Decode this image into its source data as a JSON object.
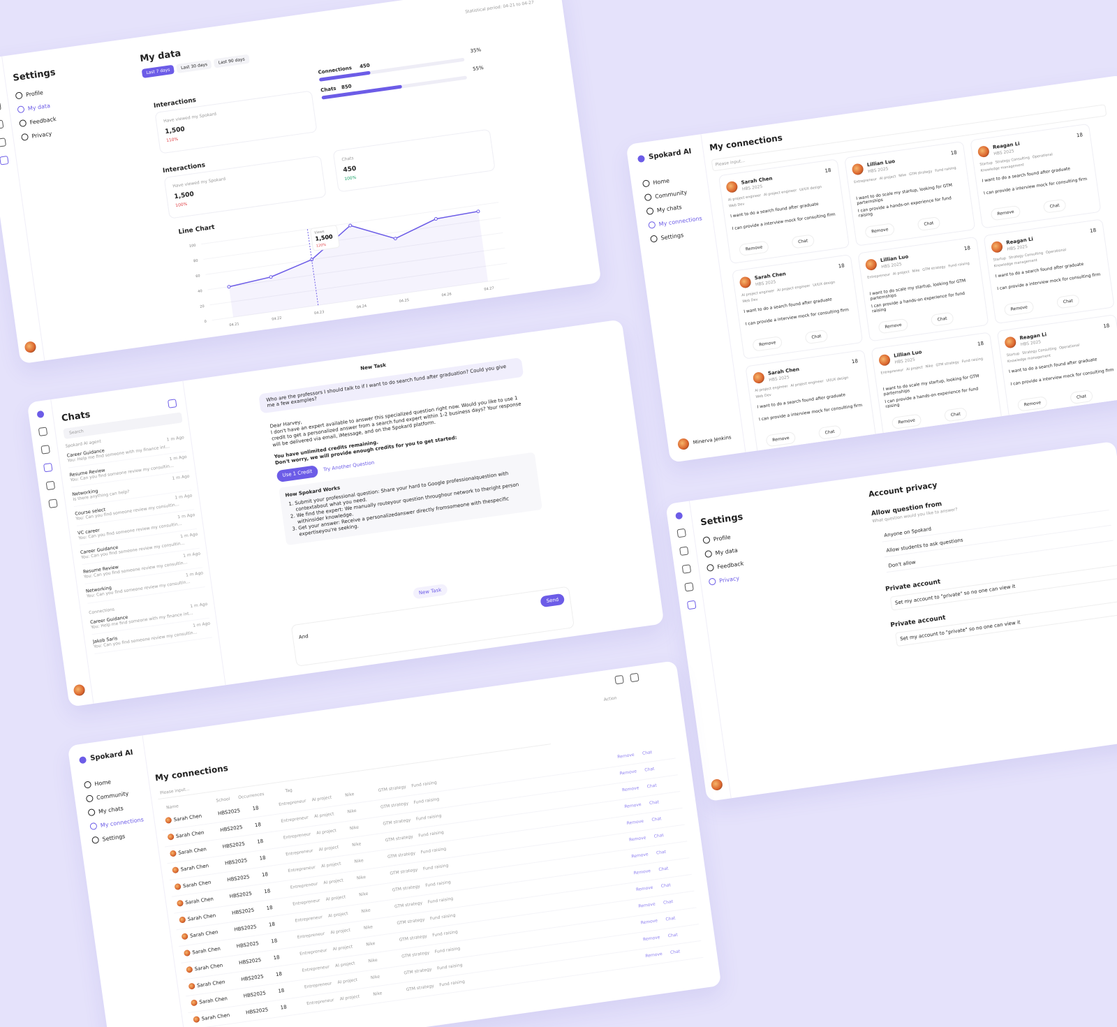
{
  "analytics": {
    "sidebar_title": "Settings",
    "menu": [
      "Profile",
      "My data",
      "Feedback",
      "Privacy"
    ],
    "title": "My data",
    "period": "Statistical period: 04-21 to 04-27",
    "tabs": [
      "Last 7 days",
      "Last 30 days",
      "Last 90 days"
    ],
    "interactions_1": {
      "title": "Interactions",
      "label": "Have viewed my Spokard",
      "value": "1,500",
      "change": "110%"
    },
    "progress": [
      {
        "name": "Connections",
        "value": "450",
        "percent": 35,
        "percent_label": "35%"
      },
      {
        "name": "Chats",
        "value": "850",
        "percent": 55,
        "percent_label": "55%"
      }
    ],
    "interactions_2": {
      "title": "Interactions",
      "label": "Have viewed my Spokard",
      "value": "1,500",
      "change": "100%"
    },
    "chats_card": {
      "label": "Chats",
      "value": "450",
      "change": "100%"
    },
    "chart_data": {
      "type": "line",
      "title": "Line Chart",
      "categories": [
        "04.21",
        "04.22",
        "04.23",
        "04.24",
        "04.25",
        "04.26",
        "04.27"
      ],
      "values": [
        40,
        45,
        60,
        97,
        72,
        90,
        92
      ],
      "color": "#6c5ce7",
      "ylim": [
        0,
        100
      ],
      "yticks": [
        0,
        20,
        40,
        60,
        80,
        100
      ],
      "tooltip": {
        "label": "Views",
        "value": "1,500",
        "change": "120%"
      }
    }
  },
  "chats": {
    "title": "Chats",
    "search": "Search",
    "agent_section": "Spokard AI agent",
    "items": [
      {
        "name": "Career Guidance",
        "preview": "You: Help me find someone with my finance interview",
        "time": "1 m Ago"
      },
      {
        "name": "Resume Review",
        "preview": "You: Can you find someone review my consulting resume?",
        "time": "1 m Ago"
      },
      {
        "name": "Networking",
        "preview": "Is there anything can help?",
        "time": "1 m Ago"
      },
      {
        "name": "Course select",
        "preview": "You: Can you find someone review my consulting resume?",
        "time": "1 m Ago"
      },
      {
        "name": "VC career",
        "preview": "You: Can you find someone review my consulting resume?",
        "time": "1 m Ago"
      },
      {
        "name": "Career Guidance",
        "preview": "You: Can you find someone review my consulting resume?",
        "time": "1 m Ago"
      },
      {
        "name": "Resume Review",
        "preview": "You: Can you find someone review my consulting resume?",
        "time": "1 m Ago"
      },
      {
        "name": "Networking",
        "preview": "You: Can you find someone review my consulting resume?",
        "time": "1 m Ago"
      }
    ],
    "connections_section": "Connections",
    "connections": [
      {
        "name": "Career Guidance",
        "preview": "You: Help me find someone with my finance interview",
        "time": "1 m Ago"
      },
      {
        "name": "Jakob Saris",
        "preview": "You: Can you find someone review my consulting resume?",
        "time": "1 m Ago"
      }
    ],
    "header": "New Task",
    "question": "Who are the professors I should talk to if I want to do search fund after graduation? Could you give me a few examples?",
    "reply": [
      "Dear Harvey,",
      "I don't have an expert available to answer this specialized question right now. Would you like to use 1 credit to get a personalized answer from a search fund expert within 1-2 business days? Your response will be delivered via email, iMessage, and on the Spokard platform."
    ],
    "credits": [
      "You have unlimited credits remaining.",
      "Don't worry, we will provide enough credits for you to get started:"
    ],
    "buttons": [
      "Use 1 Credit",
      "Try Another Question"
    ],
    "how_title": "How Spokard Works",
    "how_steps": [
      "Submit your professional question: Share your hard to Google professionalquestion with contextabout what you need.",
      "We find the expert: We manually routeyour question throughour network to theright person withinsider knowledge.",
      "Get your answer: Receive a personalizedanswer directly fromsomeone with thespecific expertiseyou're seeking."
    ],
    "new_task": "New Task",
    "input": "And",
    "send": "Send"
  },
  "cards": {
    "brand": "Spokard AI",
    "nav": [
      "Home",
      "Community",
      "My chats",
      "My connections",
      "Settings"
    ],
    "user": "Minerva Jenkins",
    "title": "My connections",
    "search": "Please input...",
    "people": [
      {
        "name": "Sarah Chen",
        "school": "HBS 2025",
        "count": 18,
        "tags": [
          "AI project engineer",
          "AI project engineer",
          "UI/UX design",
          "Web Dev"
        ],
        "want": "I want to do a search found after graduate",
        "can": "I can provide a interview mock for consulting firm"
      },
      {
        "name": "Lillian Luo",
        "school": "HBS 2025",
        "count": 18,
        "tags": [
          "Entrepreneur",
          "AI project",
          "Nike",
          "GTM strategy",
          "Fund raising"
        ],
        "want": "I want to do scale my startup, looking for GTM parternships",
        "can": "I can provide a hands-on experience for fund raising"
      },
      {
        "name": "Reagan Li",
        "school": "HBS 2025",
        "count": 18,
        "tags": [
          "Startup",
          "Strategy Consulting",
          "Operational",
          "Knowledge management"
        ],
        "want": "I want to do a search found after graduate",
        "can": "I can provide a interview mock for consulting firm"
      }
    ],
    "actions": [
      "Remove",
      "Chat"
    ]
  },
  "privacy": {
    "sidebar_title": "Settings",
    "menu": [
      "Profile",
      "My data",
      "Feedback",
      "Privacy"
    ],
    "title": "Account privacy",
    "question_title": "Allow question from",
    "question_sub": "What question would you like to answer?",
    "options": [
      "Anyone on Spokard",
      "Allow students to ask questions",
      "Don't allow"
    ],
    "private": [
      {
        "title": "Private account",
        "text": "Set my account to \"private\" so no one can view it"
      },
      {
        "title": "Private account",
        "text": "Set my account to \"private\" so no one can view it"
      }
    ]
  },
  "table": {
    "brand": "Spokard AI",
    "nav": [
      "Home",
      "Community",
      "My chats",
      "My connections",
      "Settings"
    ],
    "title": "My connections",
    "search": "Please input...",
    "headers": [
      "Name",
      "School",
      "Occurrences",
      "Tag",
      "Action"
    ],
    "row": {
      "name": "Sarah Chen",
      "school": "HBS2025",
      "count": 18,
      "tags": [
        "Entrepreneur",
        "AI project",
        "Nike",
        "GTM strategy",
        "Fund raising"
      ],
      "actions": [
        "Remove",
        "Chat"
      ]
    },
    "row_count": 13
  }
}
